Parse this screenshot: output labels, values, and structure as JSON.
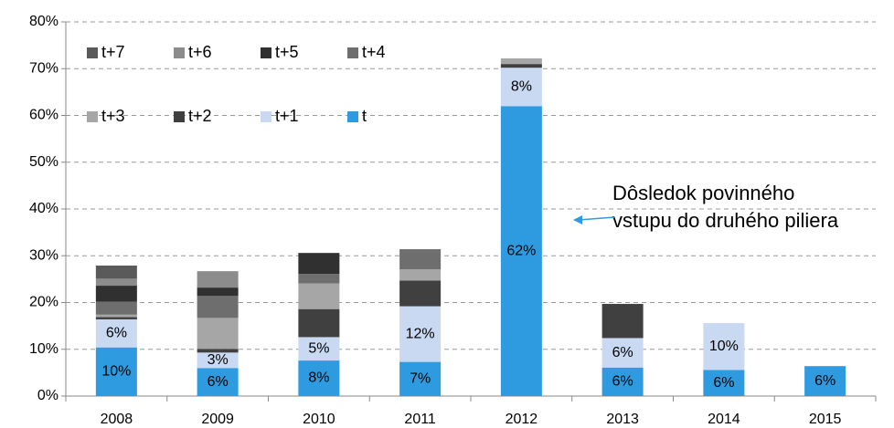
{
  "chart_data": {
    "type": "stacked_bar",
    "categories": [
      "2008",
      "2009",
      "2010",
      "2011",
      "2012",
      "2013",
      "2014",
      "2015"
    ],
    "series": [
      {
        "name": "t",
        "color": "#2e9be0",
        "values": [
          10.4,
          6.0,
          7.6,
          7.3,
          62.0,
          6.1,
          5.6,
          6.4
        ],
        "value_labels": [
          "10%",
          "6%",
          "8%",
          "7%",
          "62%",
          "6%",
          "6%",
          "6%"
        ]
      },
      {
        "name": "t+1",
        "color": "#c9d9f2",
        "values": [
          6.0,
          3.3,
          5.0,
          11.9,
          8.2,
          6.3,
          10.0,
          0
        ],
        "value_labels": [
          "6%",
          "3%",
          "5%",
          "12%",
          "8%",
          "6%",
          "10%",
          null
        ]
      },
      {
        "name": "t+2",
        "color": "#404040",
        "values": [
          0.5,
          0.8,
          6.0,
          5.5,
          0.8,
          7.3,
          0,
          0
        ]
      },
      {
        "name": "t+3",
        "color": "#a6a6a6",
        "values": [
          0.5,
          6.6,
          5.5,
          2.4,
          1.2,
          0,
          0,
          0
        ]
      },
      {
        "name": "t+4",
        "color": "#6e6e6e",
        "values": [
          2.8,
          4.7,
          2.0,
          4.3,
          0,
          0,
          0,
          0
        ]
      },
      {
        "name": "t+5",
        "color": "#303030",
        "values": [
          3.4,
          1.8,
          4.5,
          0,
          0,
          0,
          0,
          0
        ]
      },
      {
        "name": "t+6",
        "color": "#8c8c8c",
        "values": [
          1.5,
          3.5,
          0,
          0,
          0,
          0,
          0,
          0
        ]
      },
      {
        "name": "t+7",
        "color": "#5a5a5a",
        "values": [
          2.8,
          0,
          0,
          0,
          0,
          0,
          0,
          0
        ]
      }
    ],
    "ylim": [
      0,
      80
    ],
    "yticks": [
      {
        "value": 0,
        "label": "0%"
      },
      {
        "value": 10,
        "label": "10%"
      },
      {
        "value": 20,
        "label": "20%"
      },
      {
        "value": 30,
        "label": "30%"
      },
      {
        "value": 40,
        "label": "40%"
      },
      {
        "value": 50,
        "label": "50%"
      },
      {
        "value": 60,
        "label": "60%"
      },
      {
        "value": 70,
        "label": "70%"
      },
      {
        "value": 80,
        "label": "80%"
      }
    ],
    "grid": true,
    "annotation": [
      "Dôsledok povinného",
      "vstupu do druhého piliera"
    ]
  }
}
